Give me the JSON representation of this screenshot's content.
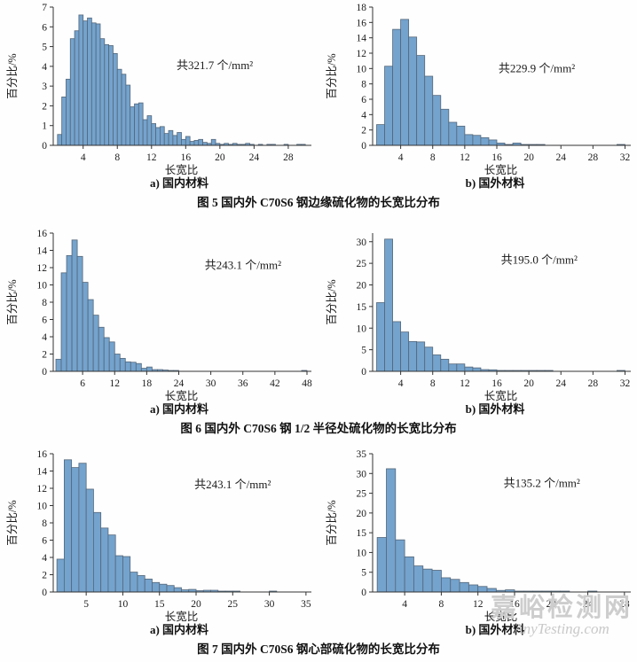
{
  "colors": {
    "bar_fill": "#74a3cd",
    "bar_edge": "#54677a",
    "axis": "#333333",
    "text": "#1a1a1a",
    "watermark": "#cdcdcd"
  },
  "figures": [
    {
      "caption": "图 5  国内外 C70S6 钢边缘硫化物的长宽比分布",
      "sub_a": "a) 国内材料",
      "sub_b": "b) 国外材料"
    },
    {
      "caption": "图 6  国内外 C70S6 钢 1/2 半径处硫化物的长宽比分布",
      "sub_a": "a) 国内材料",
      "sub_b": "b) 国外材料"
    },
    {
      "caption": "图 7  国内外 C70S6 钢心部硫化物的长宽比分布",
      "sub_a": "a) 国内材料",
      "sub_b": "b) 国外材料"
    }
  ],
  "watermark": {
    "line1": "嘉峪检测网",
    "line2": "AnyTesting.com"
  },
  "chart_data": [
    {
      "type": "bar",
      "figure": "图5",
      "panel": "a) 国内材料",
      "title": "",
      "annotation": "共321.7 个/mm²",
      "annotation_pos": [
        0.63,
        0.45
      ],
      "xlabel": "长宽比",
      "ylabel": "百分比/%",
      "x_start": 1.0,
      "bin_width": 0.5,
      "xlim": [
        0.5,
        30.5
      ],
      "ylim": [
        0,
        7
      ],
      "xticks": [
        4,
        8,
        12,
        16,
        20,
        24,
        28
      ],
      "yticks": [
        0,
        1,
        2,
        3,
        4,
        5,
        6,
        7
      ],
      "values": [
        0.55,
        2.45,
        3.35,
        5.4,
        5.8,
        6.6,
        6.3,
        6.45,
        6.2,
        6.15,
        5.4,
        5.1,
        5.05,
        4.65,
        3.85,
        3.6,
        3.05,
        1.95,
        2.1,
        2.15,
        1.3,
        1.5,
        1.1,
        0.9,
        0.95,
        0.6,
        0.75,
        0.5,
        0.65,
        0.3,
        0.45,
        0.2,
        0.25,
        0.3,
        0.15,
        0.1,
        0.3,
        0.1,
        0.05,
        0.1,
        0.05,
        0.1,
        0.05,
        0.05,
        0.1,
        0.05,
        0,
        0.05,
        0,
        0.05,
        0.05,
        0,
        0,
        0.05,
        0,
        0,
        0.05,
        0.05
      ]
    },
    {
      "type": "bar",
      "figure": "图5",
      "panel": "b) 国外材料",
      "title": "",
      "annotation": "共229.9 个/mm²",
      "annotation_pos": [
        0.64,
        0.47
      ],
      "xlabel": "长宽比",
      "ylabel": "百分比/%",
      "x_start": 1.0,
      "bin_width": 1.0,
      "xlim": [
        0.5,
        32.5
      ],
      "ylim": [
        0,
        18
      ],
      "xticks": [
        4,
        8,
        12,
        16,
        20,
        24,
        28,
        32
      ],
      "yticks": [
        0,
        2,
        4,
        6,
        8,
        10,
        12,
        14,
        16,
        18
      ],
      "values": [
        2.7,
        10.3,
        15.1,
        16.4,
        14.1,
        11.7,
        9.0,
        6.5,
        4.7,
        3.0,
        2.5,
        1.4,
        1.3,
        1.0,
        0.7,
        0.3,
        0.1,
        0.3,
        0.1,
        0.05,
        0.05,
        0,
        0,
        0,
        0,
        0,
        0,
        0,
        0,
        0,
        0.05
      ]
    },
    {
      "type": "bar",
      "figure": "图6",
      "panel": "a) 国内材料",
      "title": "",
      "annotation": "共243.1 个/mm²",
      "annotation_pos": [
        0.74,
        0.26
      ],
      "xlabel": "长宽比",
      "ylabel": "百分比/%",
      "x_start": 1.0,
      "bin_width": 1.0,
      "xlim": [
        0.5,
        48.5
      ],
      "ylim": [
        0,
        16
      ],
      "xticks": [
        6,
        12,
        18,
        24,
        30,
        36,
        42,
        48
      ],
      "yticks": [
        0,
        2,
        4,
        6,
        8,
        10,
        12,
        14,
        16
      ],
      "values": [
        1.4,
        11.4,
        13.4,
        15.2,
        13.3,
        10.3,
        8.3,
        6.5,
        5.1,
        3.9,
        3.4,
        2.0,
        1.5,
        1.1,
        1.05,
        0.9,
        0.35,
        0.5,
        0.2,
        0.2,
        0.15,
        0.1,
        0.05,
        0,
        0,
        0,
        0,
        0,
        0,
        0,
        0,
        0,
        0,
        0,
        0,
        0,
        0,
        0,
        0,
        0,
        0,
        0,
        0,
        0,
        0,
        0,
        0.05
      ]
    },
    {
      "type": "bar",
      "figure": "图6",
      "panel": "b) 国外材料",
      "title": "",
      "annotation": "共195.0 个/mm²",
      "annotation_pos": [
        0.65,
        0.22
      ],
      "xlabel": "长宽比",
      "ylabel": "百分比/%",
      "x_start": 1.0,
      "bin_width": 1.0,
      "xlim": [
        0.5,
        32.5
      ],
      "ylim": [
        0,
        32
      ],
      "xticks": [
        4,
        8,
        12,
        16,
        20,
        24,
        28,
        32
      ],
      "yticks": [
        0,
        5,
        10,
        15,
        20,
        25,
        30
      ],
      "values": [
        15.9,
        30.6,
        11.5,
        9.1,
        6.9,
        6.8,
        5.6,
        3.8,
        2.8,
        1.7,
        1.7,
        1.0,
        0.8,
        0.4,
        0.35,
        0.2,
        0.2,
        0.1,
        0.05,
        0.1,
        0.05,
        0.1,
        0,
        0,
        0,
        0,
        0,
        0,
        0,
        0,
        0.05
      ]
    },
    {
      "type": "bar",
      "figure": "图7",
      "panel": "a) 国内材料",
      "title": "",
      "annotation": "共243.1 个/mm²",
      "annotation_pos": [
        0.7,
        0.25
      ],
      "xlabel": "长宽比",
      "ylabel": "百分比/%",
      "x_start": 1.0,
      "bin_width": 1.0,
      "xlim": [
        0.5,
        35.5
      ],
      "ylim": [
        0,
        16
      ],
      "xticks": [
        5,
        10,
        15,
        20,
        25,
        30,
        35
      ],
      "yticks": [
        0,
        2,
        4,
        6,
        8,
        10,
        12,
        14,
        16
      ],
      "values": [
        3.8,
        15.3,
        14.4,
        14.9,
        11.9,
        9.2,
        7.4,
        6.6,
        4.2,
        4.1,
        2.3,
        1.9,
        1.5,
        1.1,
        0.9,
        0.75,
        0.5,
        0.25,
        0.3,
        0.15,
        0.2,
        0.2,
        0.1,
        0.05,
        0.05,
        0,
        0,
        0,
        0,
        0.1,
        0,
        0,
        0,
        0,
        0
      ]
    },
    {
      "type": "bar",
      "figure": "图7",
      "panel": "b) 国外材料",
      "title": "",
      "annotation": "共135.2 个/mm²",
      "annotation_pos": [
        0.66,
        0.24
      ],
      "xlabel": "长宽比",
      "ylabel": "百分比/%",
      "x_start": 1.0,
      "bin_width": 1.0,
      "xlim": [
        0.5,
        28.5
      ],
      "ylim": [
        0,
        35
      ],
      "xticks": [
        4,
        8,
        12,
        16,
        20,
        24,
        28
      ],
      "yticks": [
        0,
        5,
        10,
        15,
        20,
        25,
        30,
        35
      ],
      "values": [
        13.8,
        31.2,
        13.2,
        8.9,
        6.6,
        5.8,
        5.5,
        3.6,
        3.2,
        2.4,
        1.8,
        1.4,
        0.9,
        0.4,
        0.55,
        0.2,
        0.1,
        0.1,
        0.05,
        0.05,
        0.05,
        0,
        0,
        0.05,
        0,
        0,
        0
      ]
    }
  ]
}
